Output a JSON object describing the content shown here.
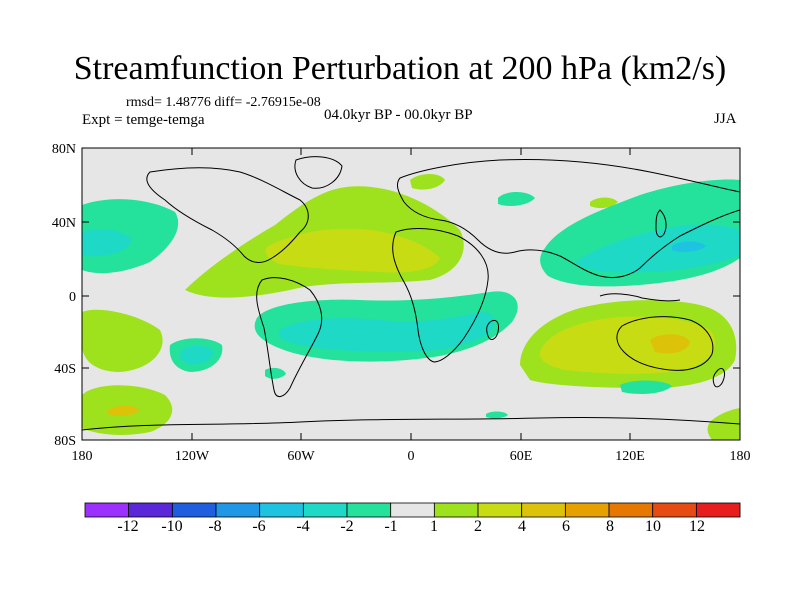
{
  "title": "Streamfunction Perturbation at 200 hPa (km2/s)",
  "stats": "rmsd= 1.48776 diff= -2.76915e-08",
  "experiment": "Expt = temge-temga",
  "period": "04.0kyr BP - 00.0kyr BP",
  "season": "JJA",
  "lat_labels": [
    "80N",
    "40N",
    "0",
    "40S",
    "80S"
  ],
  "lon_labels": [
    "180",
    "120W",
    "60W",
    "0",
    "60E",
    "120E",
    "180"
  ],
  "colorbar": {
    "colors": [
      "#9b30ff",
      "#5a28d8",
      "#1e5fe0",
      "#1f96e6",
      "#1ec3e2",
      "#1ed9c5",
      "#24e29c",
      "#e6e6e6",
      "#9ee21e",
      "#c8dc14",
      "#dcc30a",
      "#e6a000",
      "#e67800",
      "#e64b14",
      "#e61e1e"
    ],
    "labels": [
      "-12",
      "-10",
      "-8",
      "-6",
      "-4",
      "-2",
      "-1",
      "1",
      "2",
      "4",
      "6",
      "8",
      "10",
      "12"
    ]
  },
  "colors": {
    "neutral": "#e6e6e6",
    "pos1": "#9ee21e",
    "pos2": "#c8dc14",
    "pos3": "#dcc30a",
    "neg1": "#24e29c",
    "neg2": "#1ed9c5",
    "neg3": "#1ec3e2"
  }
}
